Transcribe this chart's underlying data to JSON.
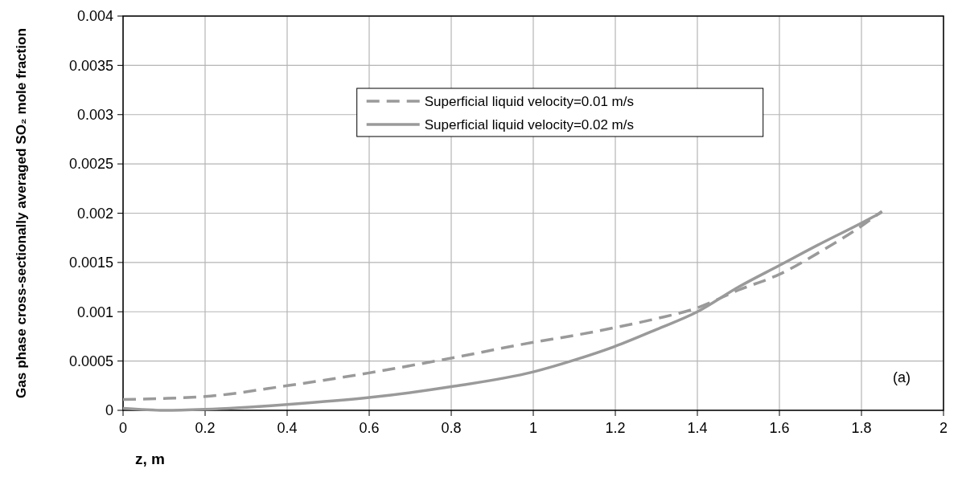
{
  "chart_data": {
    "type": "line",
    "xlabel": "z, m",
    "ylabel": "Gas phase cross-sectionally averaged SO₂ mole fraction",
    "x": [
      0,
      0.1,
      0.2,
      0.4,
      0.6,
      0.8,
      1.0,
      1.1,
      1.2,
      1.3,
      1.4,
      1.5,
      1.6,
      1.7,
      1.8,
      1.85
    ],
    "series": [
      {
        "name": "Superficial liquid velocity=0.01 m/s",
        "color": "#9a9a9a",
        "line_style": "dashed",
        "values": [
          0.00011,
          0.00012,
          0.00014,
          0.00025,
          0.00038,
          0.00053,
          0.00069,
          0.00076,
          0.00084,
          0.00093,
          0.00104,
          0.00122,
          0.00138,
          0.00161,
          0.00187,
          0.00202
        ]
      },
      {
        "name": "Superficial liquid velocity=0.02 m/s",
        "color": "#9a9a9a",
        "line_style": "solid",
        "values": [
          2e-05,
          0,
          1e-05,
          6e-05,
          0.00013,
          0.00024,
          0.00039,
          0.00051,
          0.00065,
          0.00082,
          0.001,
          0.00125,
          0.00147,
          0.00169,
          0.0019,
          0.00201
        ]
      }
    ],
    "xlim": [
      0,
      2
    ],
    "xticks": [
      0,
      0.2,
      0.4,
      0.6,
      0.8,
      1,
      1.2,
      1.4,
      1.6,
      1.8,
      2
    ],
    "ylim": [
      0,
      0.004
    ],
    "yticks": [
      0,
      0.0005,
      0.001,
      0.0015,
      0.002,
      0.0025,
      0.003,
      0.0035,
      0.004
    ],
    "grid": true,
    "legend": "top",
    "marker": "none",
    "annotations": [
      "(a)"
    ]
  }
}
